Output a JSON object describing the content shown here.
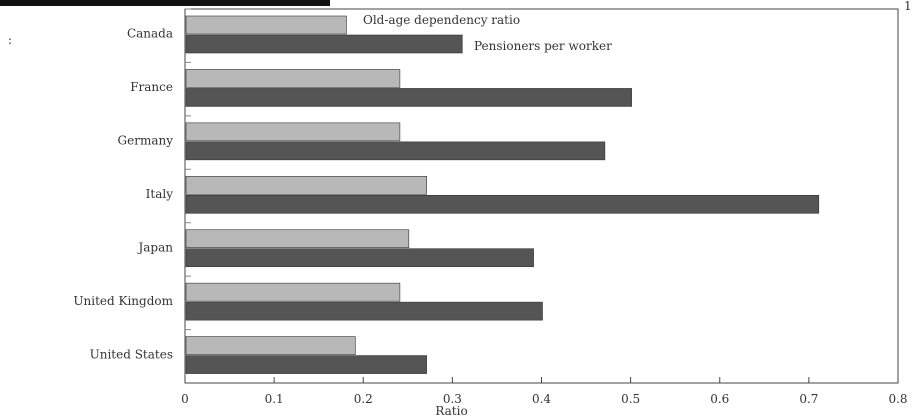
{
  "chart_data": {
    "type": "bar",
    "orientation": "horizontal",
    "categories": [
      "Canada",
      "France",
      "Germany",
      "Italy",
      "Japan",
      "United Kingdom",
      "United States"
    ],
    "series": [
      {
        "name": "Old-age dependency ratio",
        "color": "#b8b8b8",
        "values": [
          0.18,
          0.24,
          0.24,
          0.27,
          0.25,
          0.24,
          0.19
        ]
      },
      {
        "name": "Pensioners per worker",
        "color": "#555555",
        "values": [
          0.31,
          0.5,
          0.47,
          0.71,
          0.39,
          0.4,
          0.27
        ]
      }
    ],
    "xlim": [
      0,
      0.8
    ],
    "xticks": [
      "0",
      "0.1",
      "0.2",
      "0.3",
      "0.4",
      "0.5",
      "0.6",
      "0.7",
      "0.8"
    ],
    "xlabel": "Ratio",
    "ylabel": "",
    "title": "",
    "grid": false,
    "legend_position": "top-inside"
  },
  "page": {
    "left_marker": ":",
    "right_marker": "1"
  }
}
